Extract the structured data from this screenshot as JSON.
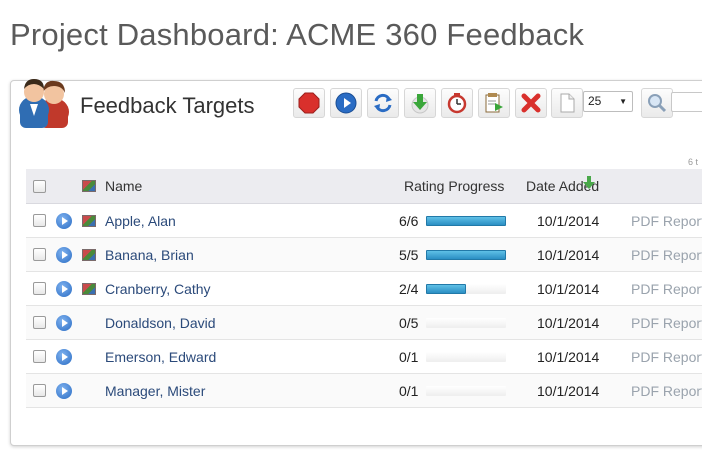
{
  "page": {
    "title": "Project Dashboard: ACME 360 Feedback"
  },
  "panel": {
    "title": "Feedback Targets",
    "icon": "users-icon",
    "count_text": "6 t"
  },
  "toolbar": {
    "buttons": [
      {
        "name": "stop-icon",
        "color": "#d9302c"
      },
      {
        "name": "play-icon",
        "color": "#2a6cc4"
      },
      {
        "name": "refresh-icon",
        "color": "#2a6cc4"
      },
      {
        "name": "download-icon",
        "color": "#3aa63a"
      },
      {
        "name": "timer-icon",
        "color": "#c7382f"
      },
      {
        "name": "export-icon",
        "color": "#8a6a3a"
      },
      {
        "name": "delete-icon",
        "color": "#d9302c"
      }
    ],
    "page_size": {
      "value": "25"
    },
    "search": {
      "placeholder": ""
    }
  },
  "table": {
    "headers": {
      "name": "Name",
      "rating": "Rating Progress",
      "date": "Date Added"
    },
    "sort": {
      "column": "date",
      "direction": "desc",
      "color": "#4aa84a"
    },
    "rows": [
      {
        "name": "Apple, Alan",
        "has_image": true,
        "score": "6/6",
        "done": 6,
        "total": 6,
        "date": "10/1/2014",
        "report": "PDF Report"
      },
      {
        "name": "Banana, Brian",
        "has_image": true,
        "score": "5/5",
        "done": 5,
        "total": 5,
        "date": "10/1/2014",
        "report": "PDF Report"
      },
      {
        "name": "Cranberry, Cathy",
        "has_image": true,
        "score": "2/4",
        "done": 2,
        "total": 4,
        "date": "10/1/2014",
        "report": "PDF Report"
      },
      {
        "name": "Donaldson, David",
        "has_image": false,
        "score": "0/5",
        "done": 0,
        "total": 5,
        "date": "10/1/2014",
        "report": "PDF Report"
      },
      {
        "name": "Emerson, Edward",
        "has_image": false,
        "score": "0/1",
        "done": 0,
        "total": 1,
        "date": "10/1/2014",
        "report": "PDF Report"
      },
      {
        "name": "Manager, Mister",
        "has_image": false,
        "score": "0/1",
        "done": 0,
        "total": 1,
        "date": "10/1/2014",
        "report": "PDF Report"
      }
    ]
  }
}
